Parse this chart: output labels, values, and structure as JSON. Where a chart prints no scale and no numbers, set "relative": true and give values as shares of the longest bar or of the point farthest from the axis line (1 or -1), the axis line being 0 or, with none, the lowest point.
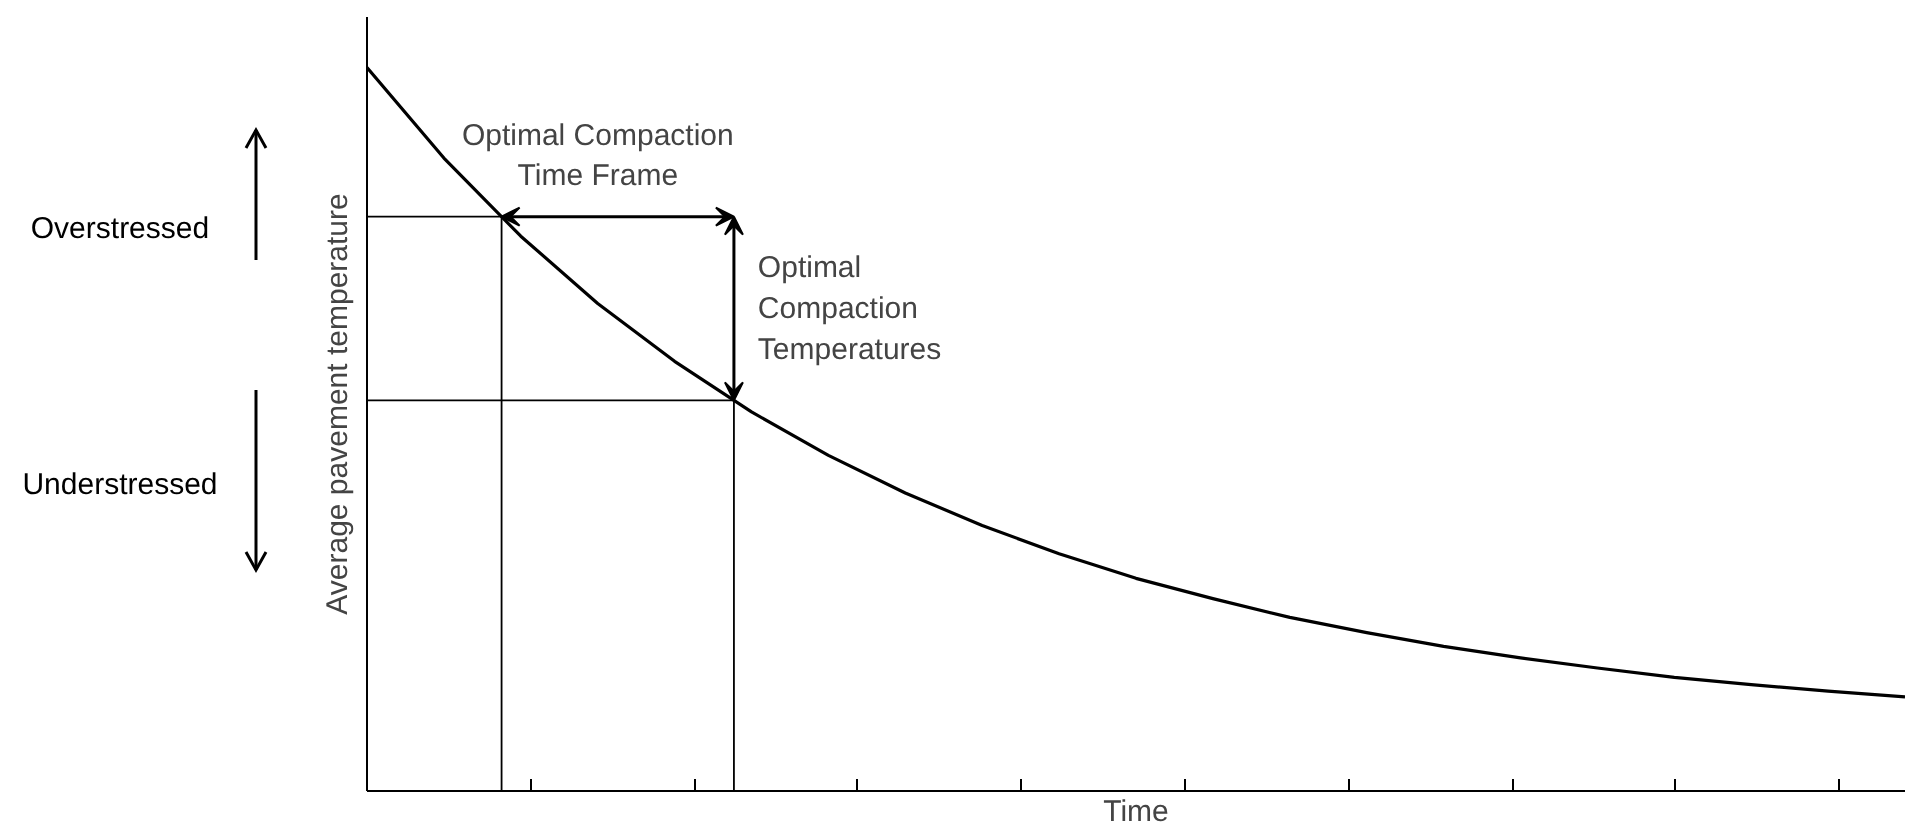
{
  "chart_data": {
    "type": "line",
    "relative": true,
    "xlabel": "Time",
    "ylabel": "Average pavement temperature",
    "categories": [
      null,
      null,
      null,
      null,
      null,
      null,
      null,
      null,
      null,
      null,
      null,
      null,
      null,
      null,
      null,
      null,
      null,
      null,
      null,
      null,
      null
    ],
    "series": [
      {
        "color": "#000000",
        "values": [
          1,
          0.875,
          0.767,
          0.674,
          0.594,
          0.524,
          0.464,
          0.412,
          0.367,
          0.328,
          0.294,
          0.266,
          0.24,
          0.219,
          0.2,
          0.184,
          0.17,
          0.157,
          0.147,
          0.138,
          0.13
        ]
      }
    ],
    "ref_lines": [
      {
        "axis": "y",
        "value": 0.794,
        "color": "#000000"
      },
      {
        "axis": "y",
        "value": 0.54,
        "color": "#000000"
      }
    ],
    "annotations": [
      "Optimal Compaction\nTime Frame",
      "Optimal\nCompaction\nTemperatures",
      "Overstressed",
      "Understressed"
    ],
    "grid": false,
    "marker": "none",
    "line_style": "solid"
  }
}
